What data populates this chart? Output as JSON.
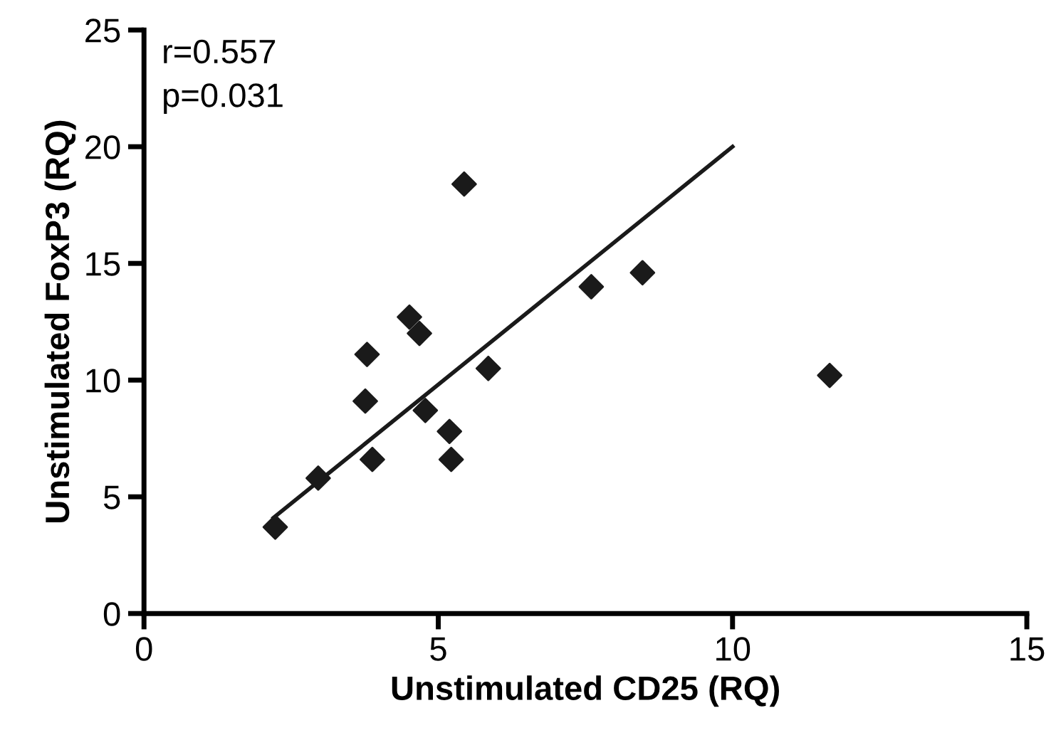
{
  "chart_data": {
    "type": "scatter",
    "xlabel": "Unstimulated CD25 (RQ)",
    "ylabel": "Unstimulated FoxP3 (RQ)",
    "xlim": [
      0,
      15
    ],
    "xticks": [
      0,
      5,
      10,
      15
    ],
    "ylim": [
      0,
      25
    ],
    "yticks": [
      0,
      5,
      10,
      15,
      20,
      25
    ],
    "grid": false,
    "legend": false,
    "annotations": [
      "r=0.557",
      "p=0.031"
    ],
    "series": [
      {
        "marker": "diamond",
        "color": "#1a1a1a",
        "x": [
          2.23,
          2.96,
          3.88,
          3.76,
          3.79,
          4.51,
          4.68,
          4.78,
          5.19,
          5.22,
          5.44,
          5.85,
          7.6,
          8.47,
          11.65
        ],
        "values": [
          3.7,
          5.8,
          6.6,
          9.1,
          11.1,
          12.7,
          12.0,
          8.7,
          7.8,
          6.6,
          18.4,
          10.5,
          14.0,
          14.6,
          10.2
        ]
      },
      {
        "type": "line",
        "marker": "none",
        "color": "#1a1a1a",
        "line_style": "solid",
        "x": [
          2.2,
          10.0
        ],
        "values": [
          4.1,
          20.0
        ]
      }
    ]
  }
}
